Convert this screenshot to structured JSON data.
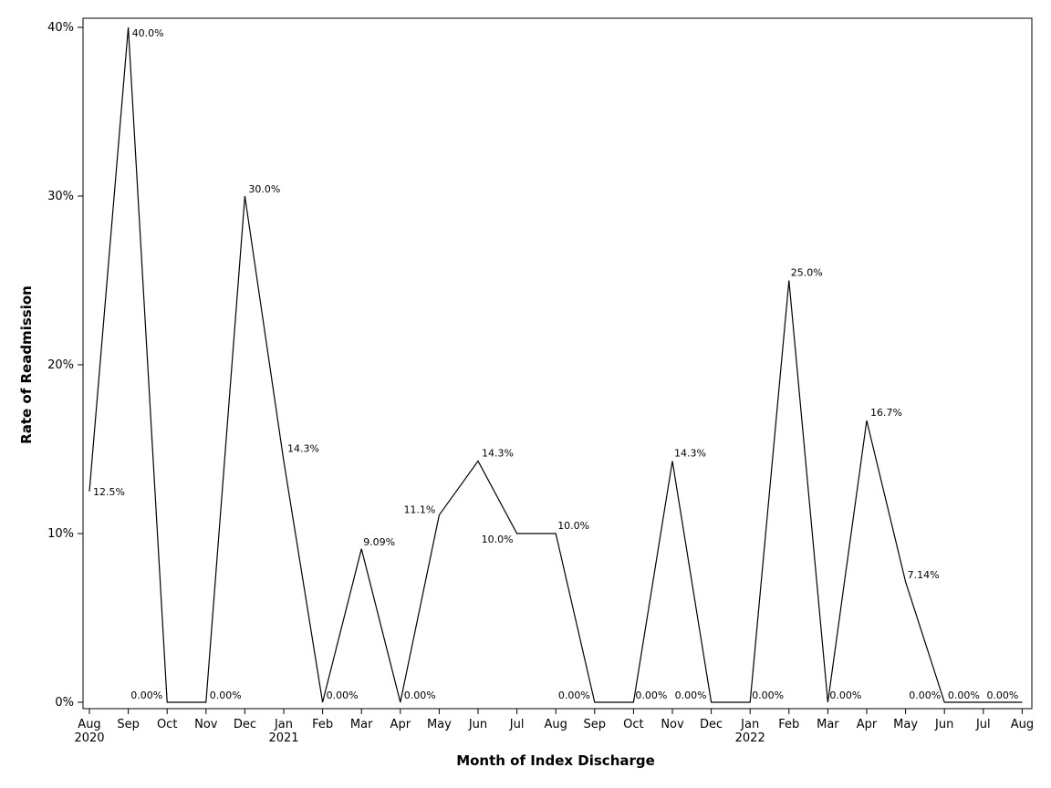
{
  "chart_data": {
    "type": "line",
    "title": "",
    "xlabel": "Month of Index Discharge",
    "ylabel": "Rate of Readmission",
    "ylim": [
      0,
      0.4
    ],
    "yticks": [
      {
        "value": 0,
        "label": "0%"
      },
      {
        "value": 0.1,
        "label": "10%"
      },
      {
        "value": 0.2,
        "label": "20%"
      },
      {
        "value": 0.3,
        "label": "30%"
      },
      {
        "value": 0.4,
        "label": "40%"
      }
    ],
    "grid": false,
    "points": [
      {
        "month": "Aug",
        "year": "2020",
        "value": 0.125,
        "label": "12.5%"
      },
      {
        "month": "Sep",
        "year": "",
        "value": 0.4,
        "label": "40.0%"
      },
      {
        "month": "Oct",
        "year": "",
        "value": 0,
        "label": "0.00%"
      },
      {
        "month": "Nov",
        "year": "",
        "value": 0,
        "label": "0.00%"
      },
      {
        "month": "Dec",
        "year": "",
        "value": 0.3,
        "label": "30.0%"
      },
      {
        "month": "Jan",
        "year": "2021",
        "value": 0.143,
        "label": "14.3%"
      },
      {
        "month": "Feb",
        "year": "",
        "value": 0,
        "label": "0.00%"
      },
      {
        "month": "Mar",
        "year": "",
        "value": 0.0909,
        "label": "9.09%"
      },
      {
        "month": "Apr",
        "year": "",
        "value": 0,
        "label": "0.00%"
      },
      {
        "month": "May",
        "year": "",
        "value": 0.111,
        "label": "11.1%"
      },
      {
        "month": "Jun",
        "year": "",
        "value": 0.143,
        "label": "14.3%"
      },
      {
        "month": "Jul",
        "year": "",
        "value": 0.1,
        "label": "10.0%"
      },
      {
        "month": "Aug",
        "year": "",
        "value": 0.1,
        "label": "10.0%"
      },
      {
        "month": "Sep",
        "year": "",
        "value": 0,
        "label": "0.00%"
      },
      {
        "month": "Oct",
        "year": "",
        "value": 0,
        "label": "0.00%"
      },
      {
        "month": "Nov",
        "year": "",
        "value": 0.143,
        "label": "14.3%"
      },
      {
        "month": "Dec",
        "year": "",
        "value": 0,
        "label": "0.00%"
      },
      {
        "month": "Jan",
        "year": "2022",
        "value": 0,
        "label": "0.00%"
      },
      {
        "month": "Feb",
        "year": "",
        "value": 0.25,
        "label": "25.0%"
      },
      {
        "month": "Mar",
        "year": "",
        "value": 0,
        "label": "0.00%"
      },
      {
        "month": "Apr",
        "year": "",
        "value": 0.167,
        "label": "16.7%"
      },
      {
        "month": "May",
        "year": "",
        "value": 0.0714,
        "label": "7.14%"
      },
      {
        "month": "Jun",
        "year": "",
        "value": 0,
        "label": "0.00%"
      },
      {
        "month": "Jul",
        "year": "",
        "value": 0,
        "label": "0.00%"
      },
      {
        "month": "Aug",
        "year": "",
        "value": 0,
        "label": "0.00%"
      }
    ],
    "line_color": "#000000"
  }
}
